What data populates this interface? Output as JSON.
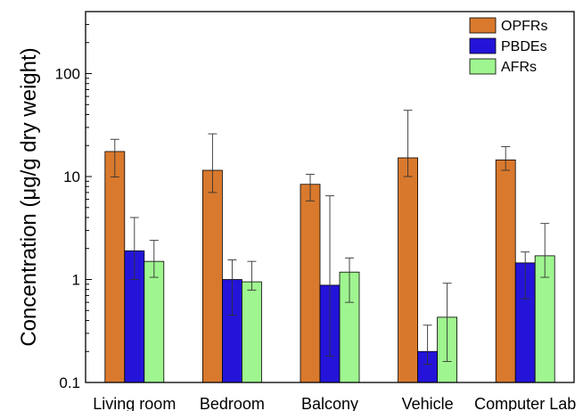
{
  "chart_data": {
    "type": "bar",
    "title": "",
    "xlabel": "",
    "ylabel": "Concentration (μg/g dry weight)",
    "yscale": "log",
    "ylim": [
      0.1,
      400
    ],
    "yticks": [
      {
        "value": 0.1,
        "label": "0.1"
      },
      {
        "value": 1,
        "label": "1"
      },
      {
        "value": 10,
        "label": "10"
      },
      {
        "value": 100,
        "label": "100"
      }
    ],
    "categories": [
      "Living room",
      "Bedroom",
      "Balcony",
      "Vehicle",
      "Computer Lab"
    ],
    "series": [
      {
        "name": "OPFRs",
        "color": "#D9792D",
        "values": [
          17.5,
          11.5,
          8.4,
          15.2,
          14.5
        ],
        "error_low": [
          9.9,
          7.0,
          5.8,
          10.0,
          11.5
        ],
        "error_high": [
          23.0,
          26.0,
          10.5,
          44.0,
          19.5
        ]
      },
      {
        "name": "PBDEs",
        "color": "#2414D9",
        "values": [
          1.9,
          1.0,
          0.88,
          0.2,
          1.45
        ],
        "error_low": [
          1.0,
          0.45,
          0.18,
          0.15,
          0.65
        ],
        "error_high": [
          4.0,
          1.55,
          6.5,
          0.36,
          1.85
        ]
      },
      {
        "name": "AFRs",
        "color": "#9FF58F",
        "values": [
          1.5,
          0.95,
          1.18,
          0.43,
          1.7
        ],
        "error_low": [
          1.05,
          0.79,
          0.6,
          0.16,
          1.05
        ],
        "error_high": [
          2.4,
          1.5,
          1.62,
          0.92,
          3.5
        ]
      }
    ],
    "legend_position": "top-right",
    "grid": false
  }
}
